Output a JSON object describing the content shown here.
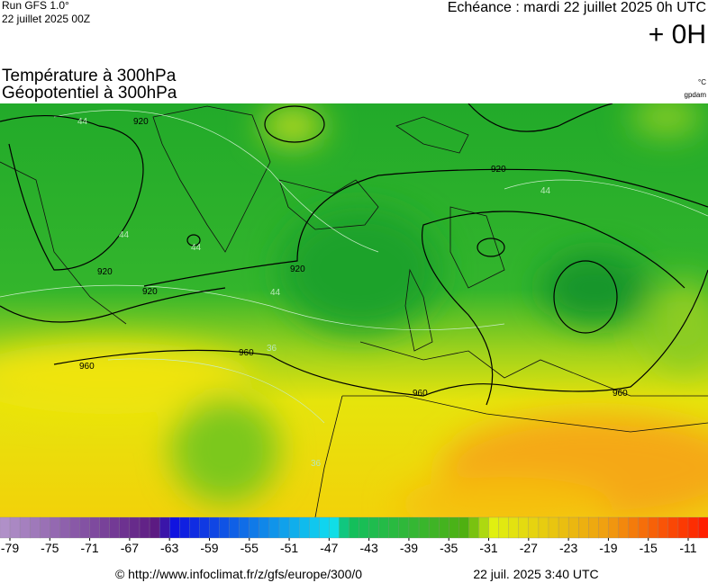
{
  "header": {
    "run": "Run GFS 1.0°",
    "run_date": "22 juillet 2025 00Z",
    "echeance": "Echéance : mardi 22 juillet 2025 0h UTC",
    "offset": "+ 0H",
    "title_line1": "Température à 300hPa",
    "title_line2": "Géopotentiel à 300hPa",
    "unit_temp": "°C",
    "unit_geo": "gpdam"
  },
  "map": {
    "contour_labels": [
      "920",
      "920",
      "920",
      "920",
      "920",
      "960",
      "960",
      "960",
      "960"
    ],
    "isotherm_labels": [
      "44",
      "44",
      "44",
      "44",
      "44",
      "36",
      "36"
    ]
  },
  "colorbar": {
    "ticks": [
      -79,
      -75,
      -71,
      -67,
      -63,
      -59,
      -55,
      -51,
      -47,
      -43,
      -39,
      -35,
      -31,
      -27,
      -23,
      -19,
      -15,
      -11
    ]
  },
  "footer": {
    "source": "© http://www.infoclimat.fr/z/gfs/europe/300/0",
    "generated": "22 juil. 2025  3:40 UTC"
  }
}
